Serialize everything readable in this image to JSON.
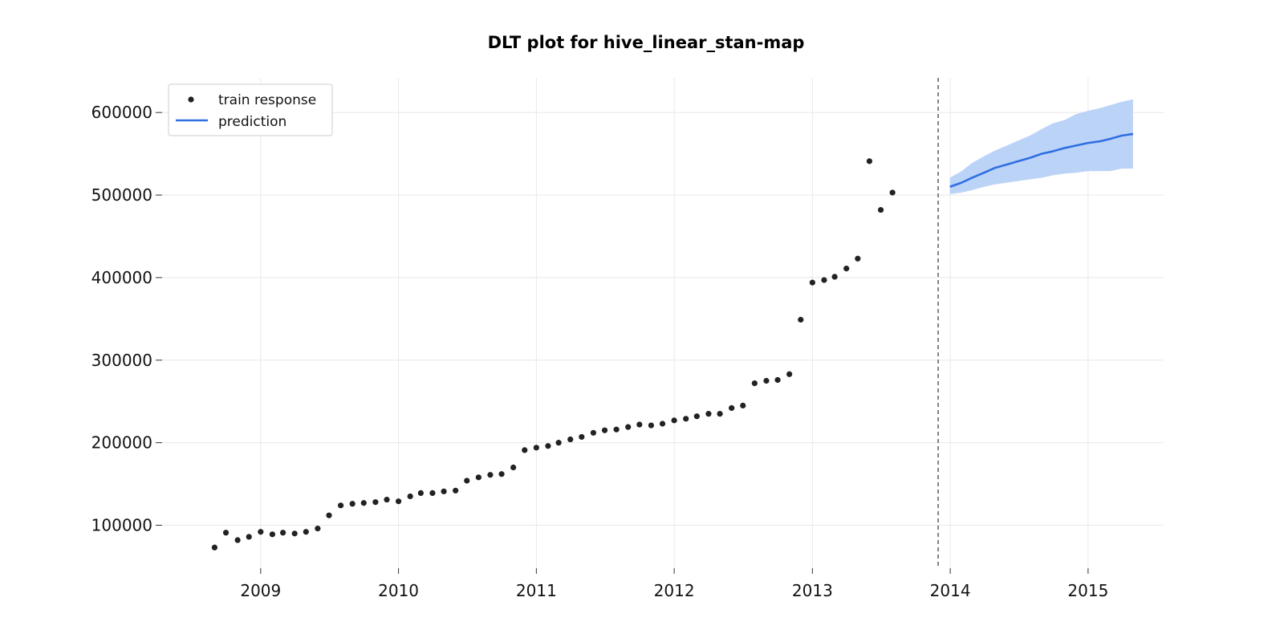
{
  "chart_data": {
    "type": "line",
    "title": "DLT plot for hive_linear_stan-map",
    "xlabel": "",
    "ylabel": "",
    "xlim": [
      "2008-04-15",
      "2015-07-20"
    ],
    "ylim": [
      48000,
      642000
    ],
    "x_ticks": [
      "2009",
      "2010",
      "2011",
      "2012",
      "2013",
      "2014",
      "2015"
    ],
    "y_ticks": [
      100000,
      200000,
      300000,
      400000,
      500000,
      600000
    ],
    "grid": true,
    "legend_position": "top-left",
    "cutoff_date": "2013-11-30",
    "colors": {
      "train": "#222222",
      "prediction": "#2f6fe0",
      "band": "#bcd3f8",
      "cutoff": "#666666",
      "grid": "#e8e8e8"
    },
    "series": [
      {
        "name": "train response",
        "kind": "scatter",
        "points": [
          [
            "2008-09-01",
            73000
          ],
          [
            "2008-10-01",
            91000
          ],
          [
            "2008-11-01",
            82000
          ],
          [
            "2008-12-01",
            86000
          ],
          [
            "2009-01-01",
            92000
          ],
          [
            "2009-02-01",
            89000
          ],
          [
            "2009-03-01",
            91000
          ],
          [
            "2009-04-01",
            90000
          ],
          [
            "2009-05-01",
            92000
          ],
          [
            "2009-06-01",
            96000
          ],
          [
            "2009-07-01",
            112000
          ],
          [
            "2009-08-01",
            124000
          ],
          [
            "2009-09-01",
            126000
          ],
          [
            "2009-10-01",
            127000
          ],
          [
            "2009-11-01",
            128000
          ],
          [
            "2009-12-01",
            131000
          ],
          [
            "2010-01-01",
            129000
          ],
          [
            "2010-02-01",
            135000
          ],
          [
            "2010-03-01",
            139000
          ],
          [
            "2010-04-01",
            139000
          ],
          [
            "2010-05-01",
            141000
          ],
          [
            "2010-06-01",
            142000
          ],
          [
            "2010-07-01",
            154000
          ],
          [
            "2010-08-01",
            158000
          ],
          [
            "2010-09-01",
            161000
          ],
          [
            "2010-10-01",
            162000
          ],
          [
            "2010-11-01",
            170000
          ],
          [
            "2010-12-01",
            191000
          ],
          [
            "2011-01-01",
            194000
          ],
          [
            "2011-02-01",
            196000
          ],
          [
            "2011-03-01",
            200000
          ],
          [
            "2011-04-01",
            204000
          ],
          [
            "2011-05-01",
            207000
          ],
          [
            "2011-06-01",
            212000
          ],
          [
            "2011-07-01",
            215000
          ],
          [
            "2011-08-01",
            216000
          ],
          [
            "2011-09-01",
            219000
          ],
          [
            "2011-10-01",
            222000
          ],
          [
            "2011-11-01",
            221000
          ],
          [
            "2011-12-01",
            223000
          ],
          [
            "2012-01-01",
            227000
          ],
          [
            "2012-02-01",
            229000
          ],
          [
            "2012-03-01",
            232000
          ],
          [
            "2012-04-01",
            235000
          ],
          [
            "2012-05-01",
            235000
          ],
          [
            "2012-06-01",
            242000
          ],
          [
            "2012-07-01",
            245000
          ],
          [
            "2012-08-01",
            272000
          ],
          [
            "2012-09-01",
            275000
          ],
          [
            "2012-10-01",
            276000
          ],
          [
            "2012-11-01",
            283000
          ],
          [
            "2012-12-01",
            349000
          ],
          [
            "2013-01-01",
            394000
          ],
          [
            "2013-02-01",
            397000
          ],
          [
            "2013-03-01",
            401000
          ],
          [
            "2013-04-01",
            411000
          ],
          [
            "2013-05-01",
            423000
          ],
          [
            "2013-06-01",
            541000
          ],
          [
            "2013-07-01",
            482000
          ],
          [
            "2013-08-01",
            503000
          ]
        ]
      },
      {
        "name": "prediction",
        "kind": "line",
        "points": [
          [
            "2013-12-31",
            510000
          ],
          [
            "2014-01-31",
            515000
          ],
          [
            "2014-02-28",
            521000
          ],
          [
            "2014-03-31",
            527000
          ],
          [
            "2014-04-30",
            533000
          ],
          [
            "2014-05-31",
            537000
          ],
          [
            "2014-06-30",
            541000
          ],
          [
            "2014-07-31",
            545000
          ],
          [
            "2014-08-31",
            550000
          ],
          [
            "2014-09-30",
            553000
          ],
          [
            "2014-10-31",
            557000
          ],
          [
            "2014-11-30",
            560000
          ],
          [
            "2014-12-31",
            563000
          ],
          [
            "2015-01-31",
            565000
          ],
          [
            "2015-02-28",
            568000
          ],
          [
            "2015-03-31",
            572000
          ],
          [
            "2015-04-30",
            574000
          ]
        ],
        "upper": [
          521000,
          529000,
          539000,
          547000,
          554000,
          560000,
          566000,
          572000,
          580000,
          587000,
          591000,
          598000,
          602000,
          605000,
          609000,
          613000,
          616000
        ],
        "lower": [
          501000,
          503000,
          506000,
          510000,
          513000,
          515000,
          517000,
          519000,
          521000,
          524000,
          526000,
          527000,
          529000,
          529000,
          529000,
          532000,
          532000
        ]
      }
    ]
  }
}
